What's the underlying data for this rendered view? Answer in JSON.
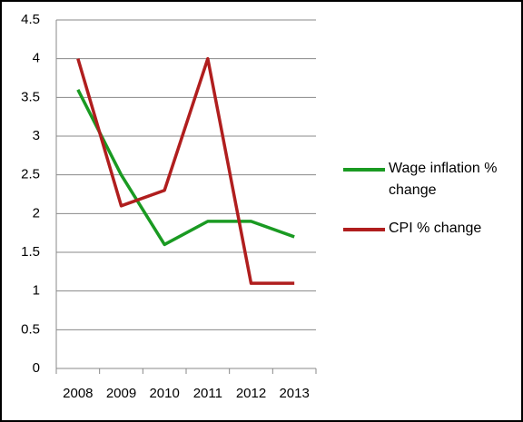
{
  "chart_data": {
    "type": "line",
    "categories": [
      "2008",
      "2009",
      "2010",
      "2011",
      "2012",
      "2013"
    ],
    "series": [
      {
        "name": "Wage inflation % change",
        "color": "#1a9a22",
        "values": [
          3.6,
          2.5,
          1.6,
          1.9,
          1.9,
          1.7
        ]
      },
      {
        "name": "CPI % change",
        "color": "#b01e1e",
        "values": [
          4,
          2.1,
          2.3,
          4,
          1.1,
          1.1
        ]
      }
    ],
    "ylim": [
      0,
      4.5
    ],
    "yticks": [
      0,
      0.5,
      1,
      1.5,
      2,
      2.5,
      3,
      3.5,
      4,
      4.5
    ],
    "grid": true,
    "legend": "right"
  }
}
